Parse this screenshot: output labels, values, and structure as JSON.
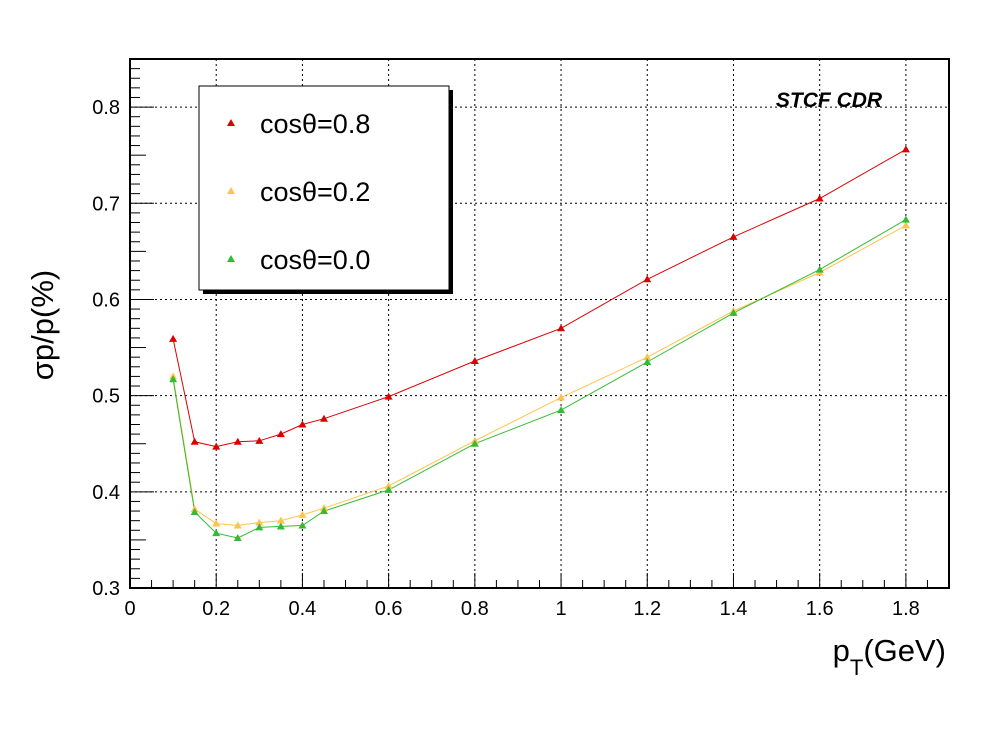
{
  "chart_data": {
    "type": "line",
    "xlim": [
      0,
      1.9
    ],
    "ylim": [
      0.3,
      0.85
    ],
    "x_ticks": [
      "0",
      "0.2",
      "0.4",
      "0.6",
      "0.8",
      "1",
      "1.2",
      "1.4",
      "1.6",
      "1.8"
    ],
    "y_ticks": [
      "0.3",
      "0.4",
      "0.5",
      "0.6",
      "0.7",
      "0.8"
    ],
    "grid": true,
    "legend_position": "top-left",
    "annotation": "STCF CDR",
    "xlabel_main": "p",
    "xlabel_sub": "T",
    "xlabel_rest": "(GeV)",
    "ylabel": "σp/p(%)",
    "x": [
      0.1,
      0.15,
      0.2,
      0.25,
      0.3,
      0.35,
      0.4,
      0.45,
      0.6,
      0.8,
      1.0,
      1.2,
      1.4,
      1.6,
      1.8
    ],
    "series": [
      {
        "name": "cosθ=0.8",
        "color": "#dd0000",
        "values": [
          0.559,
          0.452,
          0.447,
          0.452,
          0.453,
          0.46,
          0.47,
          0.476,
          0.499,
          0.536,
          0.57,
          0.621,
          0.665,
          0.705,
          0.756
        ]
      },
      {
        "name": "cosθ=0.2",
        "color": "#ffc34d",
        "values": [
          0.52,
          0.382,
          0.367,
          0.365,
          0.368,
          0.37,
          0.376,
          0.383,
          0.406,
          0.453,
          0.498,
          0.54,
          0.588,
          0.628,
          0.677
        ]
      },
      {
        "name": "cosθ=0.0",
        "color": "#33bb33",
        "values": [
          0.517,
          0.379,
          0.357,
          0.352,
          0.363,
          0.364,
          0.365,
          0.38,
          0.402,
          0.45,
          0.485,
          0.535,
          0.586,
          0.631,
          0.683
        ]
      }
    ]
  }
}
